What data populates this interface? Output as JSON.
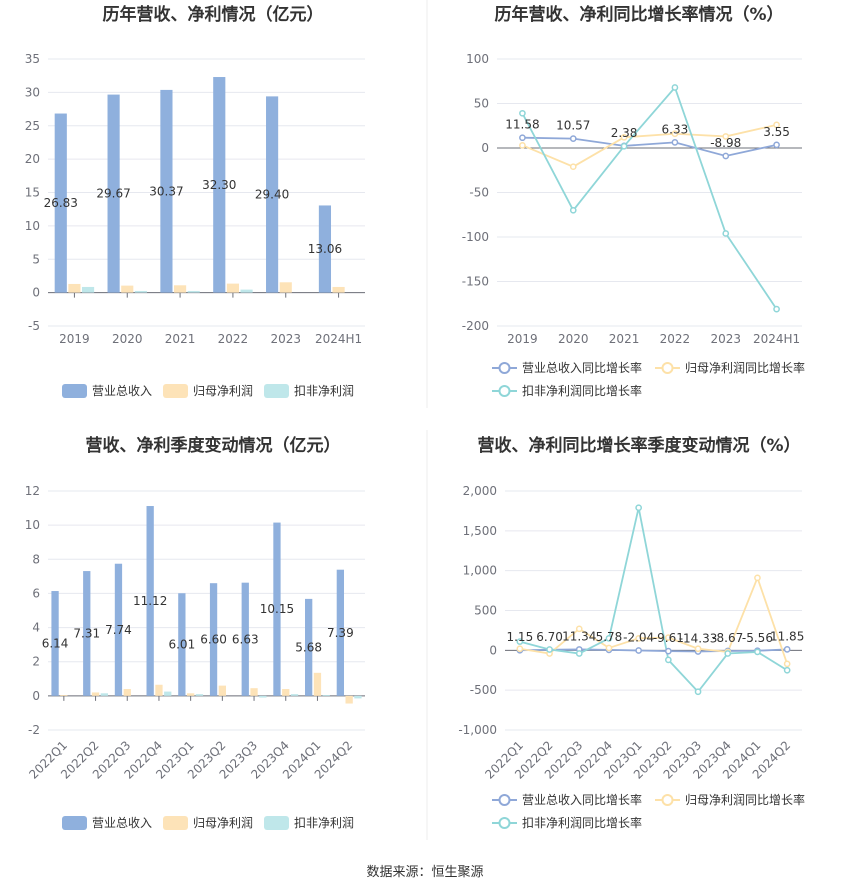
{
  "source": "数据来源：恒生聚源",
  "colors": {
    "revenue": "#8fb0dd",
    "net_profit": "#fde3b8",
    "deducted_profit": "#bfe7ea",
    "revenue_line": "#8fa8d8",
    "net_profit_line": "#fde1a8",
    "deducted_line": "#8fd6d8",
    "grid": "#e6e8ef",
    "axis": "#6e7079"
  },
  "legend_labels": {
    "bar": [
      "营业总收入",
      "归母净利润",
      "扣非净利润"
    ],
    "line": [
      "营业总收入同比增长率",
      "归母净利润同比增长率",
      "扣非净利润同比增长率"
    ]
  },
  "chart_data": [
    {
      "type": "bar",
      "title": "历年营收、净利情况（亿元）",
      "categories": [
        "2019",
        "2020",
        "2021",
        "2022",
        "2023",
        "2024H1"
      ],
      "ylim": [
        -5,
        35
      ],
      "yticks": [
        -5,
        0,
        5,
        10,
        15,
        20,
        25,
        30,
        35
      ],
      "grid": true,
      "legend_position": "bottom",
      "label_series": 0,
      "series": [
        {
          "name": "营业总收入",
          "values": [
            26.83,
            29.67,
            30.37,
            32.3,
            29.4,
            13.06
          ],
          "labels": [
            "26.83",
            "29.67",
            "30.37",
            "32.30",
            "29.40",
            "13.06"
          ]
        },
        {
          "name": "归母净利润",
          "values": [
            1.3,
            1.05,
            1.1,
            1.35,
            1.55,
            0.85
          ]
        },
        {
          "name": "扣非净利润",
          "values": [
            0.85,
            0.25,
            0.25,
            0.45,
            0,
            0
          ]
        }
      ]
    },
    {
      "type": "line",
      "title": "历年营收、净利同比增长率情况（%）",
      "categories": [
        "2019",
        "2020",
        "2021",
        "2022",
        "2023",
        "2024H1"
      ],
      "ylim": [
        -200,
        100
      ],
      "yticks": [
        -200,
        -150,
        -100,
        -50,
        0,
        50,
        100
      ],
      "grid": true,
      "legend_position": "bottom",
      "label_series": 0,
      "series": [
        {
          "name": "营业总收入同比增长率",
          "values": [
            11.58,
            10.57,
            2.38,
            6.33,
            -8.98,
            3.55
          ],
          "labels": [
            "11.58",
            "10.57",
            "2.38",
            "6.33",
            "-8.98",
            "3.55"
          ]
        },
        {
          "name": "归母净利润同比增长率",
          "values": [
            3,
            -21,
            12,
            16,
            13,
            26
          ]
        },
        {
          "name": "扣非净利润同比增长率",
          "values": [
            39,
            -70,
            2,
            68,
            -96,
            -181
          ]
        }
      ]
    },
    {
      "type": "bar",
      "title": "营收、净利季度变动情况（亿元）",
      "categories": [
        "2022Q1",
        "2022Q2",
        "2022Q3",
        "2022Q4",
        "2023Q1",
        "2023Q2",
        "2023Q3",
        "2023Q4",
        "2024Q1",
        "2024Q2"
      ],
      "ylim": [
        -2,
        12
      ],
      "yticks": [
        -2,
        0,
        2,
        4,
        6,
        8,
        10,
        12
      ],
      "grid": true,
      "legend_position": "bottom",
      "label_series": 0,
      "series": [
        {
          "name": "营业总收入",
          "values": [
            6.14,
            7.31,
            7.74,
            11.12,
            6.01,
            6.6,
            6.63,
            10.15,
            5.68,
            7.39
          ],
          "labels": [
            "6.14",
            "7.31",
            "7.74",
            "11.12",
            "6.01",
            "6.60",
            "6.63",
            "10.15",
            "5.68",
            "7.39"
          ]
        },
        {
          "name": "归母净利润",
          "values": [
            0.05,
            0.2,
            0.4,
            0.65,
            0.15,
            0.6,
            0.45,
            0.4,
            1.35,
            -0.45
          ]
        },
        {
          "name": "扣非净利润",
          "values": [
            0,
            0.15,
            0,
            0.25,
            0.1,
            0,
            -0.1,
            0.1,
            0.05,
            -0.15
          ]
        }
      ]
    },
    {
      "type": "line",
      "title": "营收、净利同比增长率季度变动情况（%）",
      "categories": [
        "2022Q1",
        "2022Q2",
        "2022Q3",
        "2022Q4",
        "2023Q1",
        "2023Q2",
        "2023Q3",
        "2023Q4",
        "2024Q1",
        "2024Q2"
      ],
      "ylim": [
        -1000,
        2000
      ],
      "yticks": [
        -1000,
        -500,
        0,
        500,
        1000,
        1500,
        2000
      ],
      "yticklabels": [
        "-1,000",
        "-500",
        "0",
        "500",
        "1,000",
        "1,500",
        "2,000"
      ],
      "grid": true,
      "legend_position": "bottom",
      "label_series": 0,
      "series": [
        {
          "name": "营业总收入同比增长率",
          "values": [
            1.15,
            6.7,
            11.34,
            5.78,
            -2.04,
            -9.61,
            -14.33,
            -8.67,
            -5.56,
            11.85
          ],
          "labels": [
            "1.15",
            "6.70",
            "11.34",
            "5.78",
            "-2.04",
            "-9.61",
            "-14.33",
            "-8.67",
            "-5.56",
            "11.85"
          ]
        },
        {
          "name": "归母净利润同比增长率",
          "values": [
            20,
            -40,
            270,
            30,
            150,
            160,
            20,
            -20,
            910,
            -170
          ]
        },
        {
          "name": "扣非净利润同比增长率",
          "values": [
            110,
            10,
            -40,
            150,
            1790,
            -120,
            -520,
            -40,
            -20,
            -250
          ]
        }
      ]
    }
  ]
}
